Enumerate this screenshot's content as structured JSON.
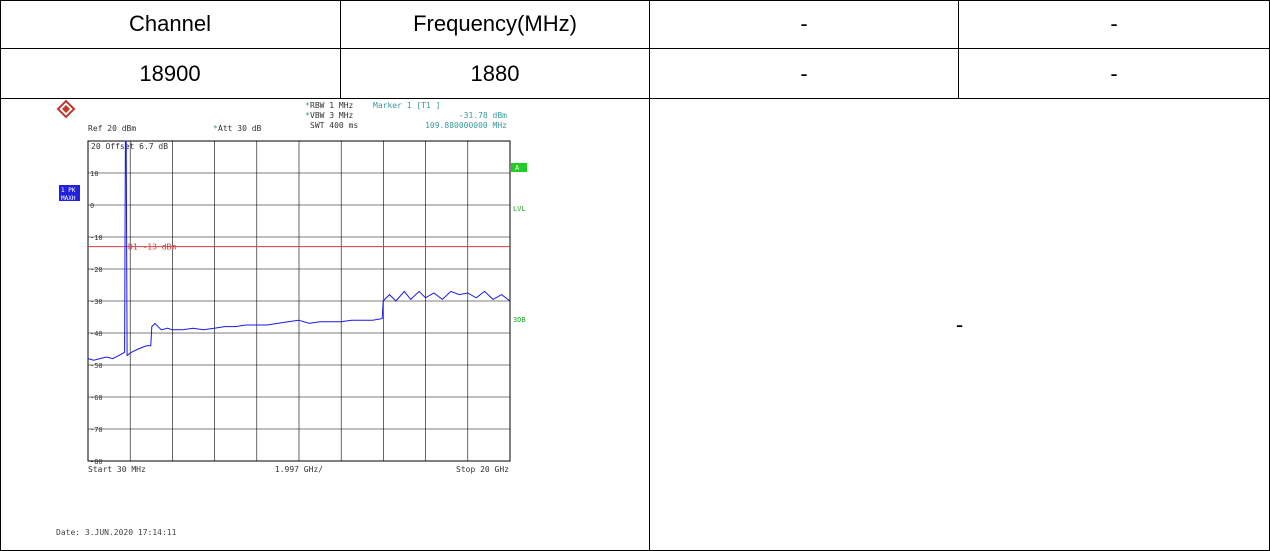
{
  "table": {
    "header": [
      "Channel",
      "Frequency(MHz)",
      "-",
      "-"
    ],
    "row": [
      "18900",
      "1880",
      "-",
      "-"
    ],
    "right_panel": "-"
  },
  "analyzer": {
    "rbw": "RBW 1 MHz",
    "vbw": "VBW 3 MHz",
    "swt": "SWT 400 ms",
    "marker_title": "Marker 1 [T1 ]",
    "marker_level": "-31.78 dBm",
    "marker_freq": "109.880000000 MHz",
    "ref": "Ref  20 dBm",
    "att": "Att  30 dB",
    "offset": "20 Offset  6.7 dB",
    "trace_label_1": "1 PK",
    "trace_label_2": "MAXH",
    "badge_a": "A",
    "side_lvl": "LVL",
    "side_3db": "3DB",
    "display_line": "D1 -13 dBm",
    "start": "Start 30 MHz",
    "span_div": "1.997 GHz/",
    "stop": "Stop 20 GHz",
    "date": "Date: 3.JUN.2020  17:14:11",
    "trace_color": "#1a1ae6",
    "limit_color": "#d04040",
    "accent_color": "#3a9a9a"
  },
  "chart_data": {
    "type": "line",
    "title": "",
    "xlabel": "",
    "ylabel": "",
    "xlim": [
      0.03,
      20
    ],
    "ylim": [
      -80,
      20
    ],
    "x_unit": "GHz",
    "y_unit": "dBm",
    "y_ticks": [
      10,
      0,
      -10,
      -20,
      -30,
      -40,
      -50,
      -60,
      -70,
      -80
    ],
    "limit_line": -13,
    "grid": true,
    "series": [
      {
        "values": [
          [
            0.03,
            -48
          ],
          [
            0.3,
            -48.5
          ],
          [
            0.6,
            -48
          ],
          [
            0.9,
            -47.5
          ],
          [
            1.2,
            -48
          ],
          [
            1.5,
            -47
          ],
          [
            1.76,
            -46
          ],
          [
            1.8,
            20
          ],
          [
            1.84,
            20
          ],
          [
            1.88,
            -47
          ],
          [
            2.1,
            -46
          ],
          [
            2.4,
            -45
          ],
          [
            2.8,
            -44
          ],
          [
            3.0,
            -44
          ],
          [
            3.05,
            -38
          ],
          [
            3.2,
            -37
          ],
          [
            3.5,
            -39
          ],
          [
            3.8,
            -38.5
          ],
          [
            4.0,
            -39
          ],
          [
            4.5,
            -39
          ],
          [
            5,
            -38.5
          ],
          [
            5.5,
            -39
          ],
          [
            6,
            -38.5
          ],
          [
            6.5,
            -38
          ],
          [
            7,
            -38
          ],
          [
            7.5,
            -37.5
          ],
          [
            8,
            -37.5
          ],
          [
            8.5,
            -37.5
          ],
          [
            9,
            -37
          ],
          [
            9.5,
            -36.5
          ],
          [
            10,
            -36
          ],
          [
            10.5,
            -37
          ],
          [
            11,
            -36.5
          ],
          [
            11.5,
            -36.5
          ],
          [
            12,
            -36.5
          ],
          [
            12.5,
            -36
          ],
          [
            13,
            -36
          ],
          [
            13.5,
            -36
          ],
          [
            13.95,
            -35.5
          ],
          [
            14.0,
            -30
          ],
          [
            14.3,
            -28
          ],
          [
            14.6,
            -30
          ],
          [
            15,
            -27
          ],
          [
            15.3,
            -29.5
          ],
          [
            15.7,
            -27
          ],
          [
            16,
            -29
          ],
          [
            16.4,
            -27.5
          ],
          [
            16.8,
            -29.5
          ],
          [
            17.2,
            -27
          ],
          [
            17.6,
            -28
          ],
          [
            18,
            -27.5
          ],
          [
            18.4,
            -29
          ],
          [
            18.8,
            -27
          ],
          [
            19.2,
            -29.5
          ],
          [
            19.6,
            -28
          ],
          [
            20,
            -30
          ]
        ]
      }
    ]
  }
}
